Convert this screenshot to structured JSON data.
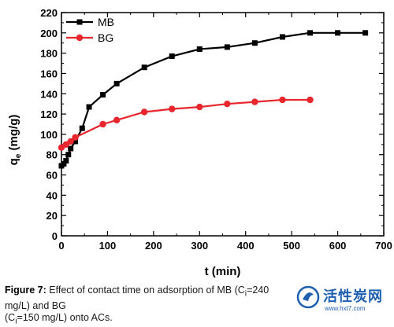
{
  "chart_data": {
    "type": "line",
    "xlabel": "t (min)",
    "ylabel_main": "q",
    "ylabel_sub": "e",
    "ylabel_units": " (mg/g)",
    "xlim": [
      0,
      700
    ],
    "ylim": [
      0,
      220
    ],
    "xticks": [
      0,
      100,
      200,
      300,
      400,
      500,
      600,
      700
    ],
    "yticks": [
      0,
      20,
      40,
      60,
      80,
      100,
      120,
      140,
      160,
      180,
      200,
      220
    ],
    "grid": false,
    "legend_position": "top-left",
    "series": [
      {
        "name": "MB",
        "color": "#000000",
        "marker": "square",
        "x": [
          0,
          5,
          10,
          15,
          20,
          30,
          45,
          60,
          90,
          120,
          180,
          240,
          300,
          360,
          420,
          480,
          540,
          600,
          660
        ],
        "y": [
          69,
          71,
          74,
          80,
          86,
          93,
          106,
          127,
          139,
          150,
          166,
          177,
          184,
          186,
          190,
          196,
          200,
          200,
          200
        ]
      },
      {
        "name": "BG",
        "color": "#e8262d",
        "marker": "circle",
        "x": [
          0,
          10,
          20,
          30,
          90,
          120,
          180,
          240,
          300,
          360,
          420,
          480,
          540
        ],
        "y": [
          87,
          90,
          93,
          97,
          110,
          114,
          122,
          125,
          127,
          130,
          132,
          134,
          134
        ]
      }
    ]
  },
  "caption": {
    "label": "Figure 7:",
    "text_line1": " Effect of contact time on adsorption of MB (C",
    "sub1": "i",
    "text_line1b": "=240 mg/L) and BG",
    "text_line2a": "(C",
    "sub2": "i",
    "text_line2b": "=150 mg/L) onto ACs."
  },
  "watermark": {
    "title": "活性炭网",
    "url": "www.hxt7.com",
    "logo_color": "#1e5fb0"
  }
}
